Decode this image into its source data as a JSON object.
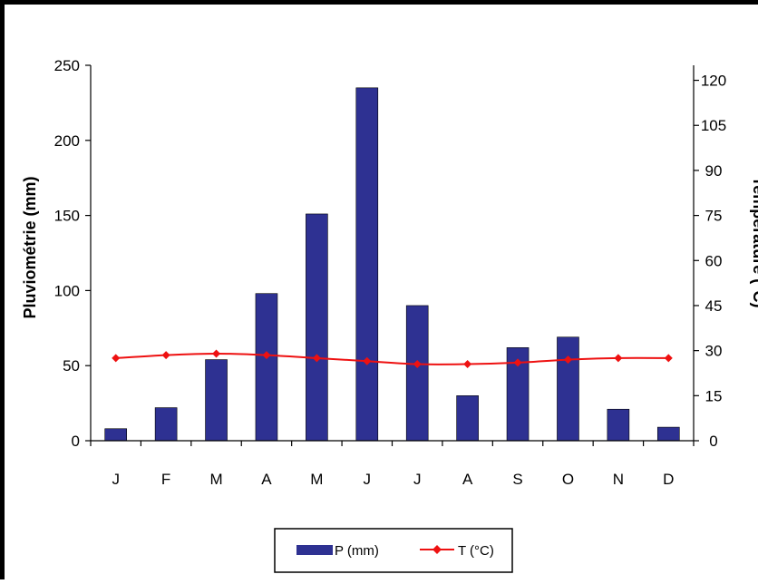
{
  "chart_data": {
    "type": "bar",
    "categories": [
      "J",
      "F",
      "M",
      "A",
      "M",
      "J",
      "J",
      "A",
      "S",
      "O",
      "N",
      "D"
    ],
    "series": [
      {
        "name": "P (mm)",
        "type": "bar",
        "axis": "left",
        "color": "#2e3192",
        "values": [
          8,
          22,
          54,
          98,
          151,
          235,
          90,
          30,
          62,
          69,
          21,
          9
        ]
      },
      {
        "name": "T (°C)",
        "type": "line",
        "axis": "right",
        "color": "#ee1111",
        "values": [
          27.5,
          28.5,
          29,
          28.5,
          27.5,
          26.5,
          25.5,
          25.5,
          26,
          27,
          27.5,
          27.5
        ]
      }
    ],
    "ylabel": "Pluviométrie (mm)",
    "y2label": "Température (°C)",
    "ylim": [
      0,
      250
    ],
    "yticks": [
      0,
      50,
      100,
      150,
      200,
      250
    ],
    "y2lim": [
      0,
      125
    ],
    "y2ticks": [
      0,
      15,
      30,
      45,
      60,
      75,
      90,
      105,
      120
    ],
    "legend": "bottom",
    "grid": false
  }
}
